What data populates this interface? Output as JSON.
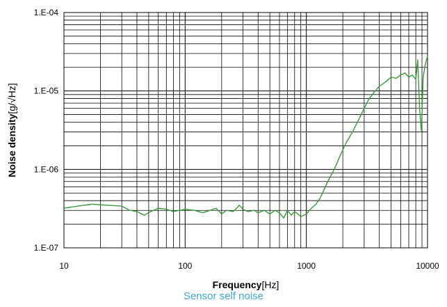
{
  "chart_data": {
    "type": "line",
    "title": "",
    "caption": "Sensor self noise",
    "xlabel": "Frequency",
    "xlabel_unit": "[Hz]",
    "ylabel": "Noise density",
    "ylabel_unit": "[g/√Hz]",
    "xscale": "log",
    "yscale": "log",
    "xlim": [
      10,
      10000
    ],
    "ylim": [
      1e-07,
      0.0001
    ],
    "grid": true,
    "x_tick_labels": [
      "10",
      "100",
      "1000",
      "10000"
    ],
    "y_tick_labels": [
      "1.E-07",
      "1.E-06",
      "1.E-05",
      "1.E-04"
    ],
    "series_color": "#3a9a3a",
    "series": [
      {
        "x": [
          10,
          13,
          17,
          22,
          30,
          35,
          40,
          46,
          52,
          60,
          70,
          80,
          90,
          100,
          120,
          140,
          160,
          180,
          200,
          220,
          250,
          280,
          300,
          330,
          370,
          400,
          450,
          500,
          550,
          600,
          650,
          700,
          750,
          800,
          850,
          900,
          950,
          1000,
          1100,
          1200,
          1300,
          1400,
          1500,
          1700,
          1900,
          2100,
          2400,
          2700,
          3000,
          3300,
          3600,
          4000,
          4500,
          5000,
          5500,
          6000,
          6500,
          7000,
          7500,
          8000,
          8300,
          8600,
          8900,
          9200,
          9600,
          10000
        ],
        "y": [
          3.2e-07,
          3.4e-07,
          3.6e-07,
          3.5e-07,
          3.4e-07,
          3e-07,
          2.9e-07,
          2.6e-07,
          2.9e-07,
          3.2e-07,
          3.1e-07,
          2.9e-07,
          3e-07,
          3.1e-07,
          3e-07,
          2.8e-07,
          3e-07,
          3.2e-07,
          2.7e-07,
          3e-07,
          2.9e-07,
          3.5e-07,
          3.1e-07,
          2.9e-07,
          3e-07,
          2.8e-07,
          3e-07,
          2.7e-07,
          3e-07,
          2.8e-07,
          2.4e-07,
          3e-07,
          2.6e-07,
          2.9e-07,
          2.7e-07,
          2.5e-07,
          2.6e-07,
          2.7e-07,
          3.2e-07,
          3.6e-07,
          4.3e-07,
          5.5e-07,
          7e-07,
          1e-06,
          1.5e-06,
          2.1e-06,
          3e-06,
          4.3e-06,
          6e-06,
          8e-06,
          9.5e-06,
          1.15e-05,
          1.3e-05,
          1.5e-05,
          1.45e-05,
          1.6e-05,
          1.7e-05,
          1.5e-05,
          1.6e-05,
          1.4e-05,
          2.5e-05,
          6e-06,
          3e-06,
          1.5e-05,
          2.2e-05,
          2.8e-05
        ]
      }
    ]
  }
}
